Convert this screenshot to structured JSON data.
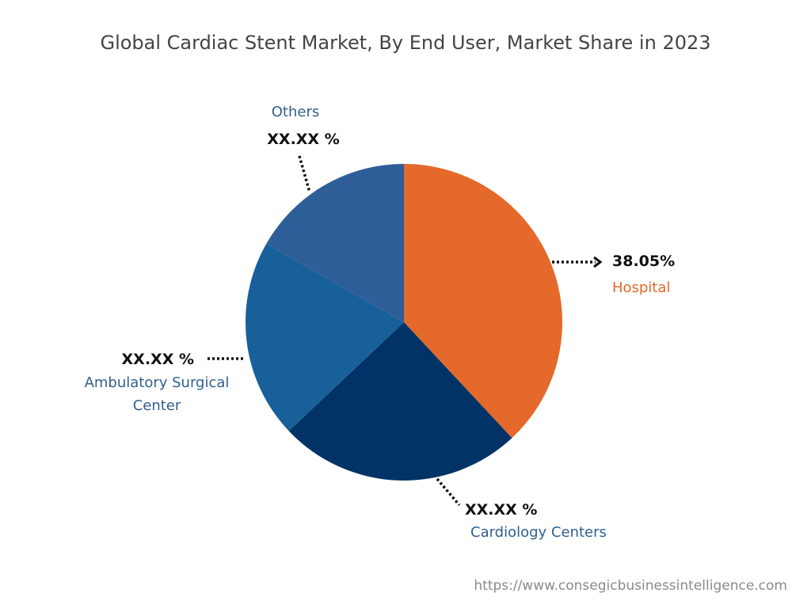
{
  "chart_data": {
    "type": "pie",
    "title": "Global Cardiac Stent Market, By End User, Market Share in 2023",
    "categories": [
      "Hospital",
      "Cardiology Centers",
      "Ambulatory Surgical Center",
      "Others"
    ],
    "values": [
      38.05,
      24.9,
      20.3,
      16.75
    ],
    "value_labels": [
      "38.05%",
      "XX.XX %",
      "XX.XX %",
      "XX.XX %"
    ],
    "colors": [
      "#e4692a",
      "#013366",
      "#17609a",
      "#2e5e97"
    ],
    "source": "https://www.consegicbusinessintelligence.com"
  }
}
